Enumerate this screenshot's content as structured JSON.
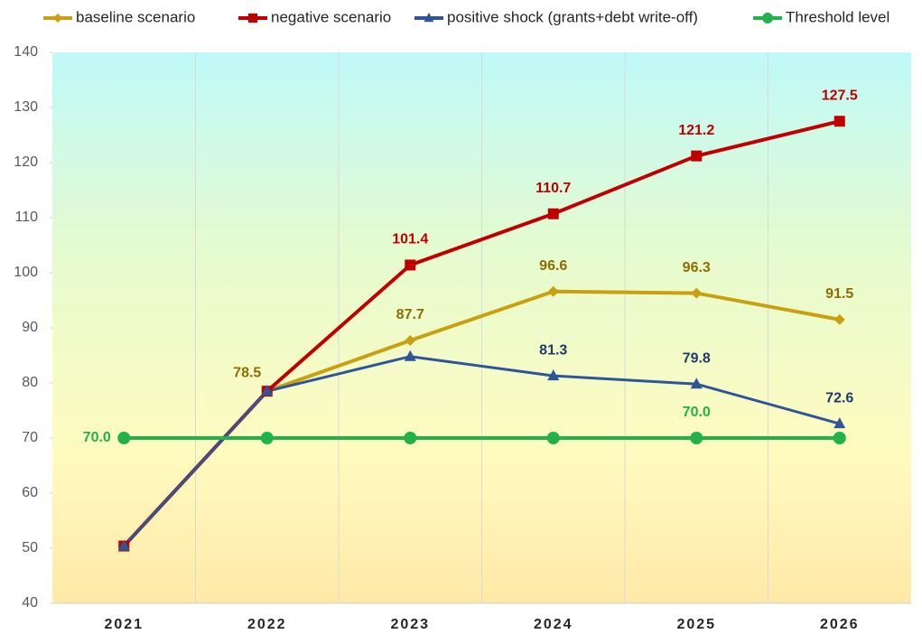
{
  "chart_data": {
    "type": "line",
    "categories": [
      "2021",
      "2022",
      "2023",
      "2024",
      "2025",
      "2026"
    ],
    "series": [
      {
        "name": "baseline scenario",
        "color": "#c9a010",
        "label_color": "#8c6d00",
        "marker": "diamond",
        "values": [
          50.4,
          78.5,
          87.7,
          96.6,
          96.3,
          91.5
        ],
        "value_labels": [
          null,
          "78.5",
          "87.7",
          "96.6",
          "96.3",
          "91.5"
        ]
      },
      {
        "name": "negative scenario",
        "color": "#c00000",
        "label_color": "#c00000",
        "marker": "square",
        "values": [
          50.4,
          78.5,
          101.4,
          110.7,
          121.2,
          127.5
        ],
        "value_labels": [
          null,
          null,
          "101.4",
          "110.7",
          "121.2",
          "127.5"
        ]
      },
      {
        "name": "positive shock (grants+debt write-off)",
        "color": "#2e559a",
        "label_color": "#1f3b6e",
        "marker": "triangle",
        "values": [
          50.4,
          78.5,
          84.8,
          81.3,
          79.8,
          72.6
        ],
        "value_labels": [
          null,
          null,
          null,
          "81.3",
          "79.8",
          "72.6"
        ]
      },
      {
        "name": "Threshold level",
        "color": "#22b24c",
        "label_color": "#22b24c",
        "marker": "circle",
        "values": [
          70,
          70,
          70,
          70,
          70,
          70
        ],
        "value_labels": [
          "70.0",
          null,
          null,
          null,
          "70.0",
          null
        ]
      }
    ],
    "ylim": [
      40,
      140
    ],
    "yticks": [
      40,
      50,
      60,
      70,
      80,
      90,
      100,
      110,
      120,
      130,
      140
    ],
    "grid": "x",
    "legend": "top"
  }
}
